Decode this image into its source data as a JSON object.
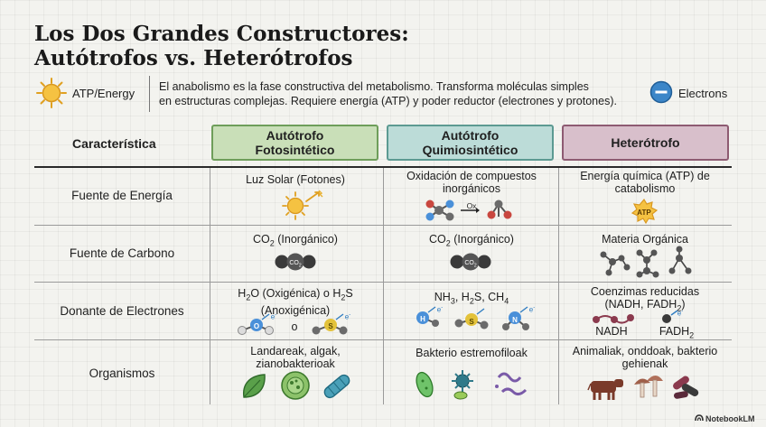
{
  "title": {
    "line1": "Los Dos Grandes Constructores:",
    "line2": "Autótrofos vs. Heterótrofos"
  },
  "legend": {
    "atp_label": "ATP/Energy",
    "electrons_label": "Electrons",
    "intro_line1": "El anabolismo es la fase constructiva del metabolismo. Transforma moléculas simples",
    "intro_line2": "en estructuras complejas. Requiere energía (ATP) y poder reductor (electrones y protones)."
  },
  "table": {
    "characteristic_header": "Característica",
    "columns": [
      {
        "line1": "Autótrofo",
        "line2": "Fotosintético",
        "color": "#c9dfb8",
        "border": "#6e9e5a"
      },
      {
        "line1": "Autótrofo",
        "line2": "Quimiosintético",
        "color": "#bcdcd8",
        "border": "#5c9a92"
      },
      {
        "line1": "Heterótrofo",
        "line2": "",
        "color": "#d8bfcb",
        "border": "#8e5b72"
      }
    ],
    "rows": {
      "energy": {
        "label": "Fuente de Energía",
        "c1": "Luz Solar (Fotones)",
        "c2_line1": "Oxidación de compuestos",
        "c2_line2": "inorgánicos",
        "c2_arrow": "Ox",
        "c3_line1": "Energía química (ATP) de",
        "c3_line2": "catabolismo",
        "c3_badge": "ATP"
      },
      "carbon": {
        "label": "Fuente de Carbono",
        "c1_pre": "CO",
        "c1_sub": "2",
        "c1_post": " (Inorgánico)",
        "c2_pre": "CO",
        "c2_sub": "2",
        "c2_post": " (Inorgánico)",
        "c3": "Materia Orgánica",
        "molecule_label": "CO",
        "molecule_sub": "2"
      },
      "donor": {
        "label": "Donante de Electrones",
        "c1_h": "H",
        "c1_sub1": "2",
        "c1_mid": "O (Oxigénica) o H",
        "c1_sub2": "2",
        "c1_s": "S",
        "c1_line2": "(Anoxigénica)",
        "c1_o": "o",
        "atom_o": "O",
        "atom_s": "S",
        "atom_h": "H",
        "atom_n": "N",
        "electron_mark": "e",
        "electron_sup": "-",
        "c2_nh": "NH",
        "c2_sub1": "3",
        "c2_h2s_a": ", H",
        "c2_sub2": "2",
        "c2_h2s_b": "S, CH",
        "c2_sub3": "4",
        "c3_line1": "Coenzimas reducidas",
        "c3_line2_a": "(NADH, FADH",
        "c3_line2_sub": "2",
        "c3_line2_b": ")",
        "nadh": "NADH",
        "fadh_a": "FADH",
        "fadh_sub": "2"
      },
      "organisms": {
        "label": "Organismos",
        "c1_line1": "Landareak, algak,",
        "c1_line2": "zianobakterioak",
        "c2": "Bakterio estremofiloak",
        "c3_line1": "Animaliak, onddoak, bakterio",
        "c3_line2": "gehienak"
      }
    }
  },
  "brand": "NotebookLM",
  "colors": {
    "sun": "#f2b233",
    "electron_blue": "#2f7cc1",
    "atom_blue": "#4a90d9",
    "atom_yellow": "#e3c23a",
    "atom_red": "#c9473f",
    "atom_grey": "#6b6b6b",
    "nadh_maroon": "#8b3a4e",
    "leaf_green": "#5aa04a",
    "cow_brown": "#7a3a2a",
    "mushroom": "#a0604a"
  }
}
